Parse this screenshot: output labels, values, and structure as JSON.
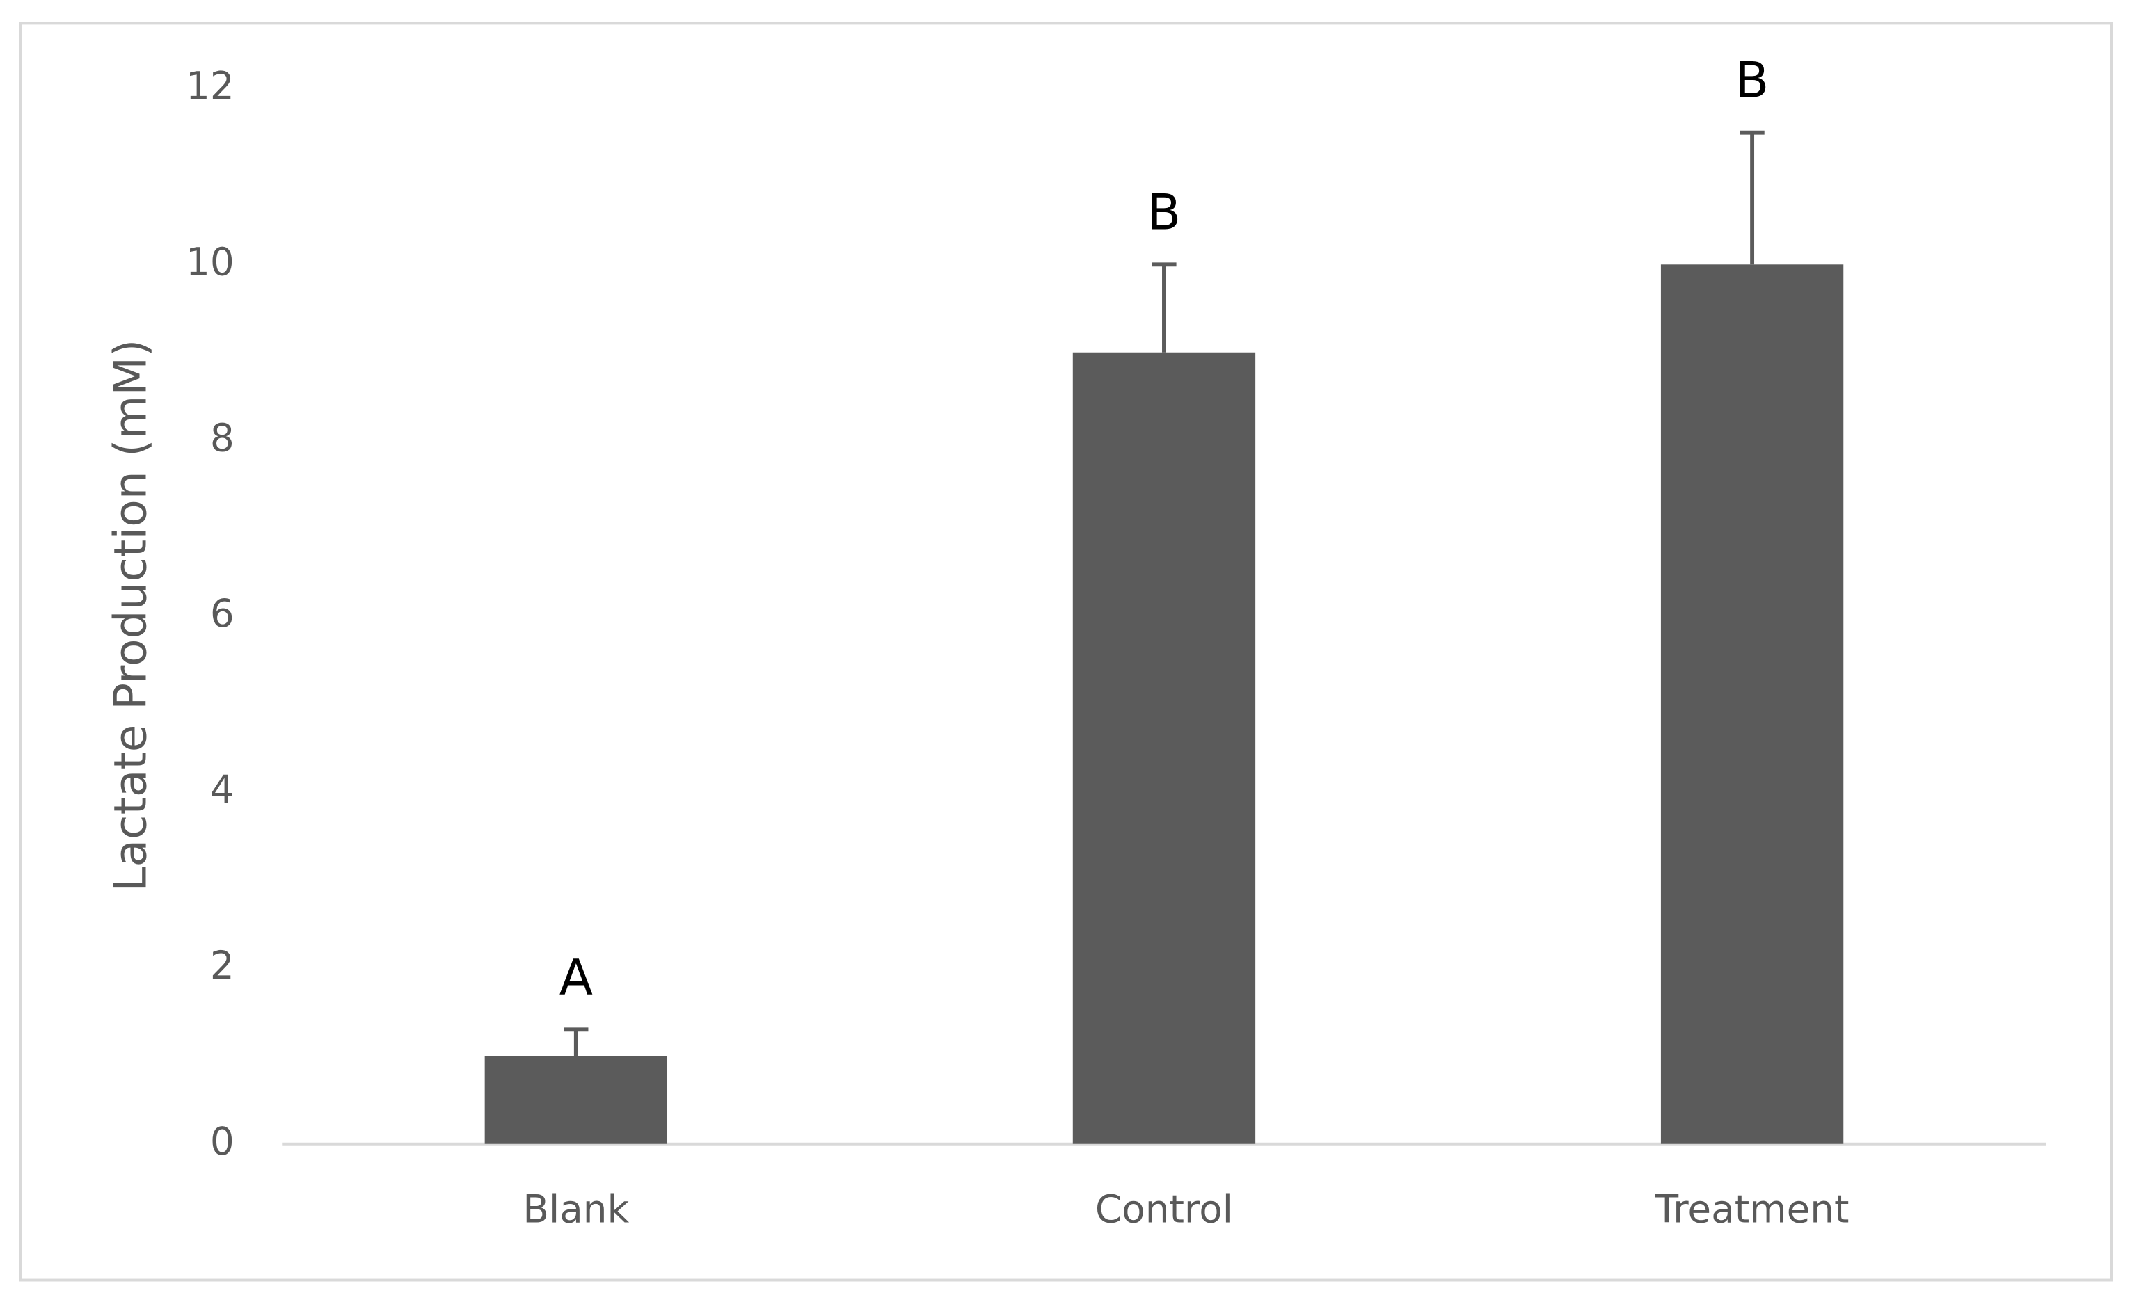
{
  "chart_data": {
    "type": "bar",
    "y_label": "Lactate Production (mM)",
    "categories": [
      "Blank",
      "Control",
      "Treatment"
    ],
    "values": [
      1,
      9,
      10
    ],
    "errors": [
      0.3,
      1,
      1.5
    ],
    "annotations": [
      "A",
      "B",
      "B"
    ],
    "color": "#5b5b5b",
    "ylim": [
      0,
      12
    ],
    "yticks": [
      0,
      2,
      4,
      6,
      8,
      10,
      12
    ],
    "grid": false
  }
}
